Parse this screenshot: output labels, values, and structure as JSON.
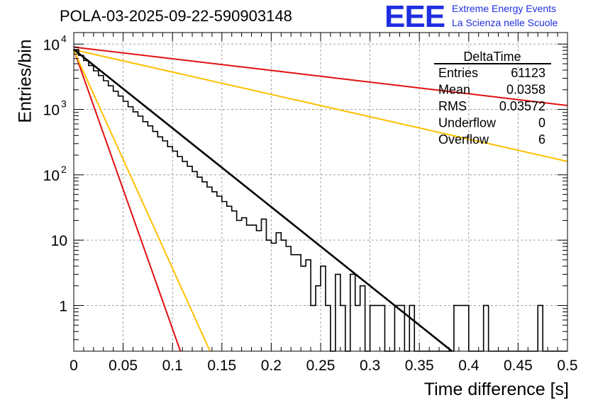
{
  "header": {
    "title": "POLA-03-2025-09-22-590903148",
    "logo_text": "EEE",
    "logo_line1": "Extreme Energy Events",
    "logo_line2": "La Scienza nelle Scuole"
  },
  "colors": {
    "logo": "#1f2fe0",
    "histogram": "#000000",
    "fit": "#000000",
    "red_curve": "#e01010",
    "orange_curve": "#ffc000",
    "grid": "#a0a0a0"
  },
  "stats": {
    "title": "DeltaTime",
    "rows": [
      {
        "label": "Entries",
        "value": "61123"
      },
      {
        "label": "Mean",
        "value": "0.0358"
      },
      {
        "label": "RMS",
        "value": "0.03572"
      },
      {
        "label": "Underflow",
        "value": "0"
      },
      {
        "label": "Overflow",
        "value": "6"
      }
    ]
  },
  "chart_data": {
    "type": "histogram",
    "xlabel": "Time difference [s]",
    "ylabel": "Entries/bin",
    "xlim": [
      0,
      0.5
    ],
    "ylim": [
      0.2,
      15000
    ],
    "yscale": "log",
    "grid": true,
    "x_ticks": [
      "0",
      "0.05",
      "0.1",
      "0.15",
      "0.2",
      "0.25",
      "0.3",
      "0.35",
      "0.4",
      "0.45",
      "0.5"
    ],
    "y_ticks": [
      {
        "value": 10000,
        "label": "10",
        "exp": "4"
      },
      {
        "value": 1000,
        "label": "10",
        "exp": "3"
      },
      {
        "value": 100,
        "label": "10",
        "exp": "2"
      },
      {
        "value": 10,
        "label": "10",
        "exp": ""
      },
      {
        "value": 1,
        "label": "1",
        "exp": ""
      }
    ],
    "bin_width": 0.005,
    "histogram_counts": [
      8200,
      6700,
      5600,
      4700,
      3900,
      3300,
      2750,
      2300,
      1900,
      1600,
      1330,
      1100,
      920,
      790,
      650,
      560,
      460,
      380,
      330,
      270,
      230,
      190,
      160,
      135,
      112,
      92,
      78,
      65,
      55,
      47,
      39,
      33,
      28,
      20,
      22,
      17,
      17,
      14,
      21,
      10,
      9,
      13,
      10,
      8,
      6,
      6,
      4,
      5,
      1,
      2,
      4,
      1,
      0,
      3,
      1,
      0,
      3,
      1,
      2,
      0,
      1,
      1,
      1,
      0,
      0,
      1,
      1,
      0,
      1,
      0,
      0,
      0,
      0,
      0,
      0,
      0,
      0,
      1,
      1,
      1,
      0,
      0,
      0,
      1,
      0,
      0,
      0,
      0,
      0,
      0,
      0,
      0,
      0,
      0,
      1,
      0,
      0,
      0,
      0,
      0
    ],
    "fit_line": {
      "x": [
        0,
        0.383
      ],
      "y": [
        8300,
        0.2
      ]
    },
    "curves": [
      {
        "color": "red",
        "x": [
          0,
          0.5
        ],
        "y": [
          9000,
          1150
        ]
      },
      {
        "color": "orange",
        "x": [
          0,
          0.5
        ],
        "y": [
          8200,
          160
        ]
      },
      {
        "color": "red",
        "x": [
          0,
          0.108
        ],
        "y": [
          8200,
          0.2
        ]
      },
      {
        "color": "orange",
        "x": [
          0,
          0.138
        ],
        "y": [
          8000,
          0.2
        ]
      }
    ]
  }
}
